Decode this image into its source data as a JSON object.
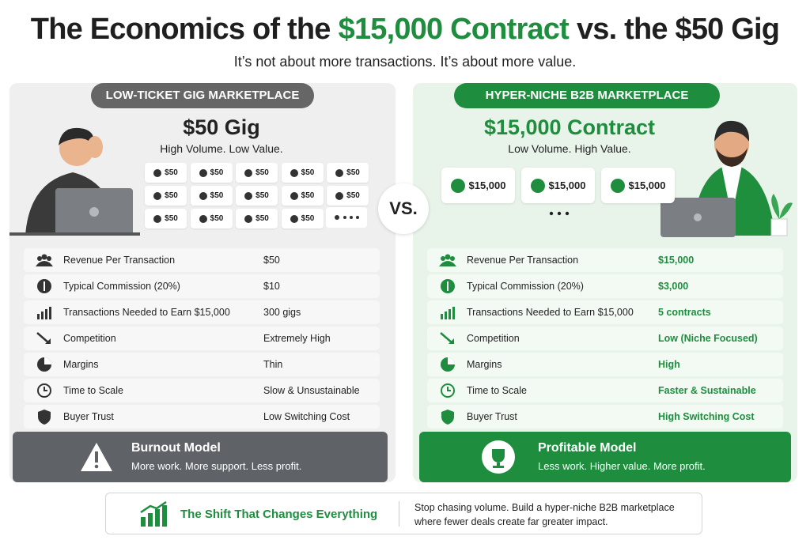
{
  "header": {
    "title": {
      "lead": "The Economics of the",
      "highlight": "$15,000 Contract",
      "tail": "vs. the $50 Gig"
    },
    "subtitle": "It’s not about more transactions. It’s about more value."
  },
  "left": {
    "badge": "LOW-TICKET GIG MARKETPLACE",
    "heading": "$50 Gig",
    "tagline": "High Volume. Low Value.",
    "tiles": [
      "$50",
      "$50",
      "$50",
      "$50",
      "$50",
      "$50",
      "$50",
      "$50",
      "$50",
      "$50",
      "$50",
      "$50",
      "$50",
      "$50"
    ],
    "rows": [
      {
        "label": "Revenue Per Transaction",
        "value": "$50"
      },
      {
        "label": "Typical Commission (20%)",
        "value": "$10"
      },
      {
        "label": "Transactions Needed to Earn $15,000",
        "value": "300 gigs"
      },
      {
        "label": "Competition",
        "value": "Extremely High"
      },
      {
        "label": "Margins",
        "value": "Thin"
      },
      {
        "label": "Time to Scale",
        "value": "Slow & Unsustainable"
      },
      {
        "label": "Buyer Trust",
        "value": "Low Switching Cost"
      }
    ],
    "model": {
      "title": "Burnout Model",
      "text": "More work. More support. Less profit."
    }
  },
  "vs": "VS.",
  "right": {
    "badge": "HYPER-NICHE B2B MARKETPLACE",
    "heading": "$15,000 Contract",
    "tagline": "Low Volume. High Value.",
    "tiles": [
      "$15,000",
      "$15,000",
      "$15,000"
    ],
    "rows": [
      {
        "label": "Revenue Per Transaction",
        "value": "$15,000"
      },
      {
        "label": "Typical Commission (20%)",
        "value": "$3,000"
      },
      {
        "label": "Transactions Needed to Earn $15,000",
        "value": "5 contracts"
      },
      {
        "label": "Competition",
        "value": "Low (Niche Focused)"
      },
      {
        "label": "Margins",
        "value": "High"
      },
      {
        "label": "Time to Scale",
        "value": "Faster & Sustainable"
      },
      {
        "label": "Buyer Trust",
        "value": "High Switching Cost"
      }
    ],
    "model": {
      "title": "Profitable Model",
      "text": "Less work. Higher value. More profit."
    }
  },
  "banner": {
    "title": "The Shift That Changes Everything",
    "lines": [
      "Stop chasing volume. Build a hyper-niche B2B marketplace",
      "where fewer deals create far greater impact."
    ]
  }
}
